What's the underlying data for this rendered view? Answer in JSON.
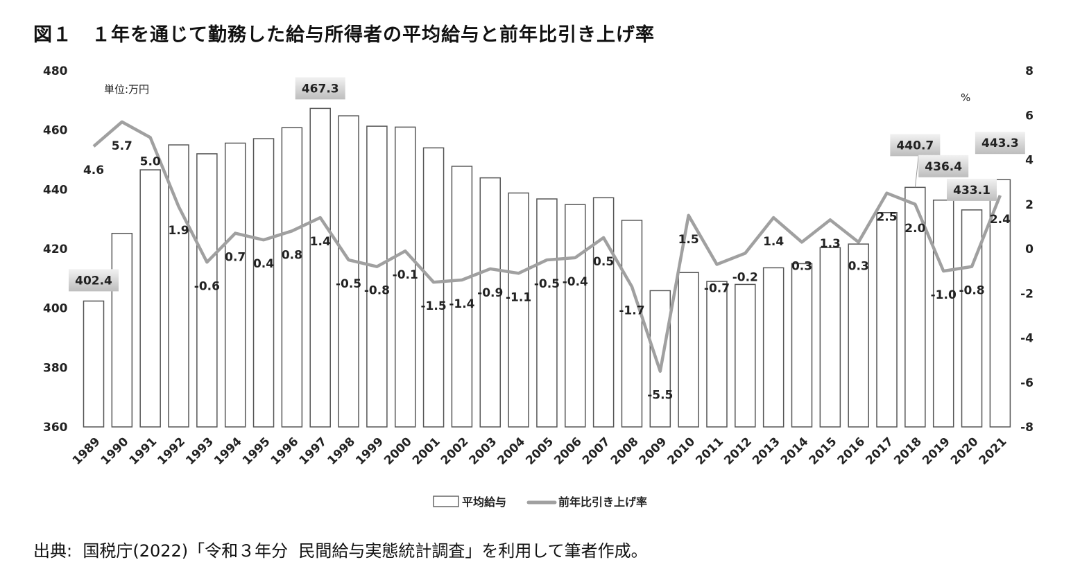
{
  "title": "図１　１年を通じて勤務した給与所得者の平均給与と前年比引き上げ率",
  "source": "出典:  国税庁(2022)「令和３年分  民間給与実態統計調査」を利用して筆者作成。",
  "chart_data": {
    "type": "bar+line",
    "unit_label": "単位:万円",
    "right_unit_label": "%",
    "categories": [
      "1989",
      "1990",
      "1991",
      "1992",
      "1993",
      "1994",
      "1995",
      "1996",
      "1997",
      "1998",
      "1999",
      "2000",
      "2001",
      "2002",
      "2003",
      "2004",
      "2005",
      "2006",
      "2007",
      "2008",
      "2009",
      "2010",
      "2011",
      "2012",
      "2013",
      "2014",
      "2015",
      "2016",
      "2017",
      "2018",
      "2019",
      "2020",
      "2021"
    ],
    "series": [
      {
        "name": "平均給与",
        "type": "bar",
        "axis": "left",
        "color": "#ffffff",
        "stroke": "#555555",
        "values": [
          402.4,
          425.2,
          446.6,
          455.0,
          452.0,
          455.6,
          457.1,
          460.8,
          467.3,
          464.8,
          461.3,
          461.0,
          454.0,
          447.8,
          443.9,
          438.8,
          436.8,
          434.9,
          437.2,
          429.6,
          405.9,
          412.0,
          409.0,
          408.0,
          413.6,
          415.0,
          420.4,
          421.6,
          432.2,
          440.7,
          436.4,
          433.1,
          443.3
        ],
        "labeled": {
          "1989": "402.4",
          "1997": "467.3",
          "2018": "440.7",
          "2019": "436.4",
          "2020": "433.1",
          "2021": "443.3"
        }
      },
      {
        "name": "前年比引き上げ率",
        "type": "line",
        "axis": "right",
        "color": "#a0a0a0",
        "values": [
          4.6,
          5.7,
          5.0,
          1.9,
          -0.6,
          0.7,
          0.4,
          0.8,
          1.4,
          -0.5,
          -0.8,
          -0.1,
          -1.5,
          -1.4,
          -0.9,
          -1.1,
          -0.5,
          -0.4,
          0.5,
          -1.7,
          -5.5,
          1.5,
          -0.7,
          -0.2,
          1.4,
          0.3,
          1.3,
          0.3,
          2.5,
          2.0,
          -1.0,
          -0.8,
          2.4
        ]
      }
    ],
    "y_left": {
      "min": 360,
      "max": 480,
      "ticks": [
        "360",
        "380",
        "400",
        "420",
        "440",
        "460",
        "480"
      ]
    },
    "y_right": {
      "min": -8,
      "max": 8,
      "ticks": [
        "-8",
        "-6",
        "-4",
        "-2",
        "0",
        "2",
        "4",
        "6",
        "8"
      ]
    },
    "grid": false,
    "legend": {
      "placement": "bottom",
      "items": [
        "平均給与",
        "前年比引き上げ率"
      ]
    }
  }
}
